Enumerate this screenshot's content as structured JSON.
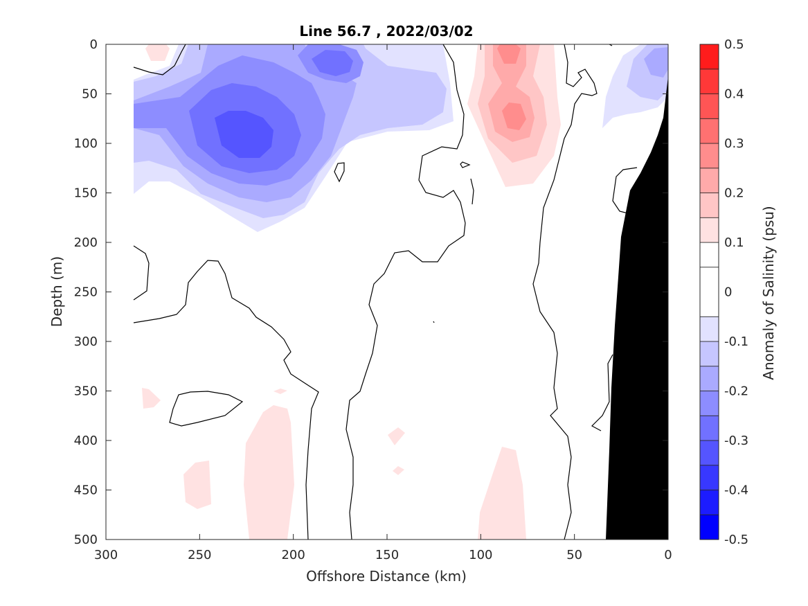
{
  "chart_data": {
    "type": "heatmap",
    "subtype": "filled-contour-section",
    "title": "Line 56.7 , 2022/03/02",
    "xlabel": "Offshore Distance (km)",
    "ylabel": "Depth (m)",
    "xlim": [
      300,
      0
    ],
    "ylim": [
      0,
      500
    ],
    "y_reversed": true,
    "x_ticks": [
      300,
      250,
      200,
      150,
      100,
      50,
      0
    ],
    "y_ticks": [
      0,
      50,
      100,
      150,
      200,
      250,
      300,
      350,
      400,
      450,
      500
    ],
    "colorbar": {
      "label": "Anomaly of Salinity (psu)",
      "ticks": [
        0.5,
        0.4,
        0.3,
        0.2,
        0.1,
        0,
        -0.1,
        -0.2,
        -0.3,
        -0.4,
        -0.5
      ],
      "levels": [
        -0.5,
        -0.45,
        -0.4,
        -0.35,
        -0.3,
        -0.25,
        -0.2,
        -0.15,
        -0.1,
        -0.05,
        0.05,
        0.1,
        0.15,
        0.2,
        0.25,
        0.3,
        0.35,
        0.4,
        0.45,
        0.5
      ],
      "colors": [
        "#0000ff",
        "#1c1cff",
        "#3838ff",
        "#5555ff",
        "#7171ff",
        "#8d8dff",
        "#aaaaff",
        "#c6c6ff",
        "#e2e2ff",
        "#ffffff",
        "#ffffff",
        "#ffe2e2",
        "#ffc6c6",
        "#ffaaaa",
        "#ff8d8d",
        "#ff7171",
        "#ff5555",
        "#ff3838",
        "#ff1c1c",
        "#ff0000"
      ]
    },
    "data_extent_km": [
      0,
      285
    ],
    "anomaly_regions": [
      {
        "name": "fresh core nearshore-offshore",
        "center_km": 228,
        "center_depth_m": 95,
        "min_psu": -0.35
      },
      {
        "name": "fresh lobe",
        "center_km": 175,
        "center_depth_m": 35,
        "min_psu": -0.25
      },
      {
        "name": "fresh coastal",
        "center_km": 8,
        "center_depth_m": 25,
        "min_psu": -0.2
      },
      {
        "name": "salty upper",
        "center_km": 85,
        "center_depth_m": 15,
        "max_psu": 0.2
      },
      {
        "name": "salty core",
        "center_km": 85,
        "center_depth_m": 75,
        "max_psu": 0.25
      },
      {
        "name": "salty deep",
        "center_km": 205,
        "center_depth_m": 440,
        "max_psu": 0.1
      },
      {
        "name": "salty deep",
        "center_km": 85,
        "center_depth_m": 460,
        "max_psu": 0.1
      }
    ],
    "bathymetry": "black shelf/slope wedge from ~33 km at 500 m to 0 km at ~35 m"
  }
}
